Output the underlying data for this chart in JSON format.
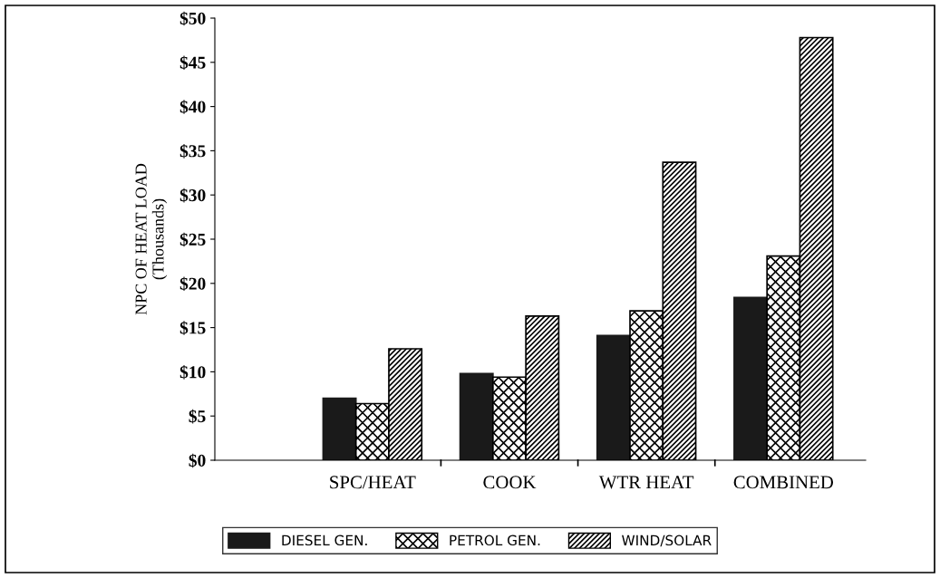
{
  "chart_data": {
    "type": "bar",
    "ylabel": "NPC OF HEAT LOAD\n(Thousands)",
    "categories": [
      "SPC/HEAT",
      "COOK",
      "WTR HEAT",
      "COMBINED"
    ],
    "series": [
      {
        "name": "DIESEL GEN.",
        "color": "#1a1a1a",
        "values": [
          7.0,
          9.8,
          14.1,
          18.4
        ]
      },
      {
        "name": "PETROL GEN.",
        "color": "#000000",
        "values": [
          6.4,
          9.4,
          16.9,
          23.1
        ]
      },
      {
        "name": "WIND/SOLAR",
        "color": "#000000",
        "values": [
          12.6,
          16.3,
          33.7,
          47.8
        ]
      }
    ],
    "ylim": [
      0,
      50
    ],
    "yticks": [
      {
        "value": 0,
        "label": "$0"
      },
      {
        "value": 5,
        "label": "$5"
      },
      {
        "value": 10,
        "label": "$10"
      },
      {
        "value": 15,
        "label": "$15"
      },
      {
        "value": 20,
        "label": "$20"
      },
      {
        "value": 25,
        "label": "$25"
      },
      {
        "value": 30,
        "label": "$30"
      },
      {
        "value": 35,
        "label": "$35"
      },
      {
        "value": 40,
        "label": "$40"
      },
      {
        "value": 45,
        "label": "$45"
      },
      {
        "value": 50,
        "label": "$50"
      }
    ],
    "grid": false,
    "legend": "bottom"
  }
}
